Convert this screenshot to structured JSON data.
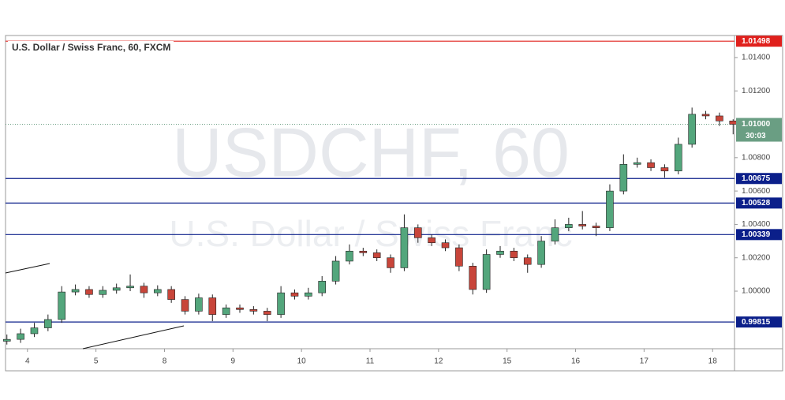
{
  "chart_data": {
    "type": "candlestick",
    "title": "U.S. Dollar / Swiss Franc, 60, FXCM",
    "watermark": "USDCHF, 60",
    "watermark_subtitle": "U.S. Dollar / Swiss Franc",
    "up_color": "#53a67c",
    "down_color": "#c8453a",
    "xlim": [
      -0.32,
      10.32
    ],
    "xticks": [
      {
        "value": 0,
        "label": "4"
      },
      {
        "value": 1,
        "label": "5"
      },
      {
        "value": 2,
        "label": "8"
      },
      {
        "value": 3,
        "label": "9"
      },
      {
        "value": 4,
        "label": "10"
      },
      {
        "value": 5,
        "label": "11"
      },
      {
        "value": 6,
        "label": "12"
      },
      {
        "value": 7,
        "label": "15"
      },
      {
        "value": 8,
        "label": "16"
      },
      {
        "value": 9,
        "label": "17"
      },
      {
        "value": 10,
        "label": "18"
      }
    ],
    "ylim": [
      0.99655,
      1.01532
    ],
    "yticks": [
      {
        "value": 1.014,
        "label": "1.01400"
      },
      {
        "value": 1.012,
        "label": "1.01200"
      },
      {
        "value": 1.008,
        "label": "1.00800"
      },
      {
        "value": 1.006,
        "label": "1.00600"
      },
      {
        "value": 1.004,
        "label": "1.00400"
      },
      {
        "value": 1.002,
        "label": "1.00200"
      },
      {
        "value": 1.0,
        "label": "1.00000"
      }
    ],
    "levels": [
      {
        "value": 1.01498,
        "label": "1.01498",
        "color": "#e0201c"
      },
      {
        "value": 1.00675,
        "label": "1.00675",
        "color": "#0b1f8a"
      },
      {
        "value": 1.00528,
        "label": "1.00528",
        "color": "#0b1f8a"
      },
      {
        "value": 1.00339,
        "label": "1.00339",
        "color": "#0b1f8a"
      },
      {
        "value": 0.99815,
        "label": "0.99815",
        "color": "#0b1f8a"
      }
    ],
    "current_price": {
      "value": 1.01,
      "label": "1.01000",
      "countdown": "30:03",
      "color": "#6a9e83"
    },
    "candles": {
      "x": [
        -0.3,
        -0.1,
        0.1,
        0.3,
        0.5,
        0.7,
        0.9,
        1.1,
        1.3,
        1.5,
        1.7,
        1.9,
        2.1,
        2.3,
        2.5,
        2.7,
        2.9,
        3.1,
        3.3,
        3.5,
        3.7,
        3.9,
        4.1,
        4.3,
        4.5,
        4.7,
        4.9,
        5.1,
        5.3,
        5.5,
        5.7,
        5.9,
        6.1,
        6.3,
        6.5,
        6.7,
        6.9,
        7.1,
        7.3,
        7.5,
        7.7,
        7.9,
        8.1,
        8.3,
        8.5,
        8.7,
        8.9,
        9.1,
        9.3,
        9.5,
        9.7,
        9.9,
        10.1,
        10.3
      ],
      "open": [
        0.997,
        0.99711,
        0.99745,
        0.9978,
        0.9983,
        0.99995,
        1.0001,
        0.9998,
        1.00005,
        1.0002,
        1.0003,
        0.9999,
        1.0001,
        0.9995,
        0.9988,
        0.9996,
        0.9986,
        0.999,
        0.9989,
        0.9988,
        0.9986,
        0.9999,
        0.9997,
        0.9999,
        1.0006,
        1.0018,
        1.0024,
        1.0023,
        1.002,
        1.0014,
        1.0038,
        1.0032,
        1.0029,
        1.0026,
        1.0015,
        1.0001,
        1.0022,
        1.0024,
        1.002,
        1.0016,
        1.003,
        1.0038,
        1.004,
        1.0039,
        1.0038,
        1.006,
        1.0076,
        1.0077,
        1.0074,
        1.0072,
        1.0088,
        1.0106,
        1.0105,
        1.0102
      ],
      "high": [
        0.9974,
        0.99775,
        0.9981,
        0.9986,
        1.0003,
        1.0004,
        1.0003,
        1.0003,
        1.00045,
        1.001,
        1.0005,
        1.00035,
        1.0003,
        0.9997,
        0.99985,
        0.9998,
        0.9992,
        0.9992,
        0.9991,
        0.999,
        1.0003,
        1.0001,
        1.0002,
        1.0009,
        1.0021,
        1.0028,
        1.0026,
        1.0025,
        1.0022,
        1.0046,
        1.004,
        1.0034,
        1.0031,
        1.0028,
        1.0017,
        1.0025,
        1.0027,
        1.0026,
        1.0022,
        1.0033,
        1.0043,
        1.0044,
        1.0048,
        1.0041,
        1.0064,
        1.0082,
        1.008,
        1.0079,
        1.0076,
        1.0092,
        1.011,
        1.0108,
        1.0107,
        1.0103
      ],
      "low": [
        0.9968,
        0.9969,
        0.99725,
        0.9976,
        0.9981,
        0.99975,
        0.9996,
        0.9996,
        0.99985,
        1.0,
        0.9996,
        0.9997,
        0.9993,
        0.9986,
        0.9986,
        0.9982,
        0.9984,
        0.9987,
        0.9986,
        0.9982,
        0.9984,
        0.9995,
        0.9995,
        0.9997,
        1.0004,
        1.0016,
        1.0021,
        1.0018,
        1.0011,
        1.0012,
        1.0029,
        1.0027,
        1.0024,
        1.0012,
        0.9998,
        0.9999,
        1.002,
        1.0018,
        1.0011,
        1.0014,
        1.0028,
        1.0036,
        1.0037,
        1.0033,
        1.0036,
        1.0058,
        1.0074,
        1.0072,
        1.0068,
        1.007,
        1.0086,
        1.0103,
        1.0099,
        1.0094
      ],
      "close": [
        0.99711,
        0.99745,
        0.9978,
        0.9983,
        0.99995,
        1.0001,
        0.9998,
        1.00005,
        1.0002,
        1.0003,
        0.9999,
        1.0001,
        0.9995,
        0.9988,
        0.9996,
        0.9986,
        0.999,
        0.9989,
        0.9988,
        0.9986,
        0.9999,
        0.9997,
        0.9999,
        1.0006,
        1.0018,
        1.0024,
        1.0023,
        1.002,
        1.0014,
        1.0038,
        1.0032,
        1.0029,
        1.0026,
        1.0015,
        1.0001,
        1.0022,
        1.0024,
        1.002,
        1.0016,
        1.003,
        1.0038,
        1.004,
        1.0039,
        1.0038,
        1.006,
        1.0076,
        1.0077,
        1.0074,
        1.0072,
        1.0088,
        1.0106,
        1.0105,
        1.0102,
        1.01
      ]
    }
  }
}
